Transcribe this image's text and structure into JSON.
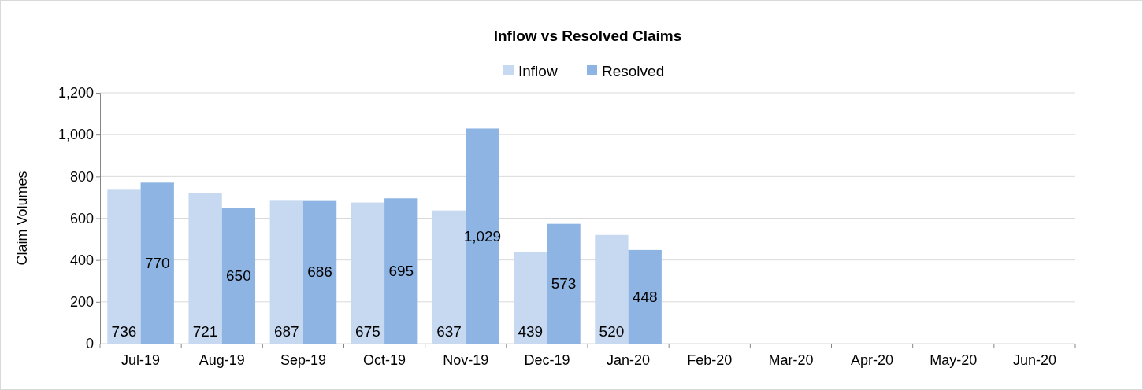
{
  "chart_data": {
    "type": "bar",
    "title": "Inflow vs Resolved Claims",
    "ylabel": "Claim Volumes",
    "categories": [
      "Jul-19",
      "Aug-19",
      "Sep-19",
      "Oct-19",
      "Nov-19",
      "Dec-19",
      "Jan-20",
      "Feb-20",
      "Mar-20",
      "Apr-20",
      "May-20",
      "Jun-20"
    ],
    "series": [
      {
        "name": "Inflow",
        "color": "#c6d9f1",
        "values": [
          736,
          721,
          687,
          675,
          637,
          439,
          520,
          null,
          null,
          null,
          null,
          null
        ],
        "value_labels": [
          "736",
          "721",
          "687",
          "675",
          "637",
          "439",
          "520",
          null,
          null,
          null,
          null,
          null
        ]
      },
      {
        "name": "Resolved",
        "color": "#8db4e2",
        "values": [
          770,
          650,
          686,
          695,
          1029,
          573,
          448,
          null,
          null,
          null,
          null,
          null
        ],
        "value_labels": [
          "770",
          "650",
          "686",
          "695",
          "1,029",
          "573",
          "448",
          null,
          null,
          null,
          null,
          null
        ]
      }
    ],
    "ylim": [
      0,
      1200
    ],
    "yticks": [
      {
        "value": 0,
        "label": "0"
      },
      {
        "value": 200,
        "label": "200"
      },
      {
        "value": 400,
        "label": "400"
      },
      {
        "value": 600,
        "label": "600"
      },
      {
        "value": 800,
        "label": "800"
      },
      {
        "value": 1000,
        "label": "1,000"
      },
      {
        "value": 1200,
        "label": "1,200"
      }
    ],
    "grid": "y",
    "legend": "top"
  }
}
